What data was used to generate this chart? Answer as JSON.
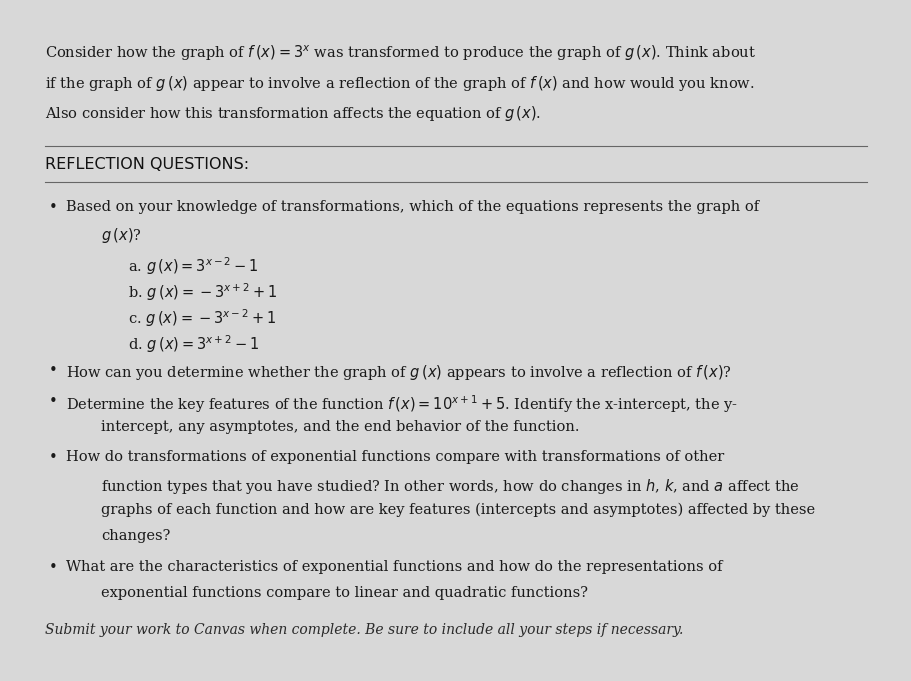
{
  "bg_color": "#d8d8d8",
  "content_bg": "#ebebeb",
  "intro_line1": "Consider how the graph of $f\\,(x)=3^x$ was transformed to produce the graph of $g\\,(x)$. Think about",
  "intro_line2": "if the graph of $g\\,(x)$ appear to involve a reflection of the graph of $f\\,(x)$ and how would you know.",
  "intro_line3": "Also consider how this transformation affects the equation of $g\\,(x)$.",
  "section_header": "REFLECTION QUESTIONS:",
  "bullet1_line1": "Based on your knowledge of transformations, which of the equations represents the graph of",
  "bullet1_line2": "$g\\,(x)$?",
  "choice_a": "a. $g\\,(x)=3^{x-2}-1$",
  "choice_b": "b. $g\\,(x)=-3^{x+2}+1$",
  "choice_c": "c. $g\\,(x)=-3^{x-2}+1$",
  "choice_d": "d. $g\\,(x)=3^{x+2}-1$",
  "bullet2": "How can you determine whether the graph of $g\\,(x)$ appears to involve a reflection of $f\\,(x)$?",
  "bullet3_line1": "Determine the key features of the function $f\\,(x)=10^{x+1}+5$. Identify the x-intercept, the y-",
  "bullet3_line2": "intercept, any asymptotes, and the end behavior of the function.",
  "bullet4_line1": "How do transformations of exponential functions compare with transformations of other",
  "bullet4_line2": "function types that you have studied? In other words, how do changes in $h$, $k$, and $a$ affect the",
  "bullet4_line3": "graphs of each function and how are key features (intercepts and asymptotes) affected by these",
  "bullet4_line4": "changes?",
  "bullet5_line1": "What are the characteristics of exponential functions and how do the representations of",
  "bullet5_line2": "exponential functions compare to linear and quadratic functions?",
  "footer": "Submit your work to Canvas when complete. Be sure to include all your steps if necessary."
}
